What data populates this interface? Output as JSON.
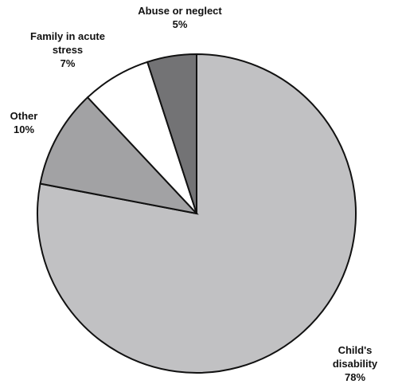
{
  "chart_data": {
    "type": "pie",
    "categories": [
      "Child's disability",
      "Other",
      "Family in acute stress",
      "Abuse or neglect"
    ],
    "values": [
      78,
      10,
      7,
      5
    ],
    "value_labels": [
      "78%",
      "10%",
      "7%",
      "5%"
    ],
    "colors": [
      "#c1c1c3",
      "#a2a2a4",
      "#ffffff",
      "#737375"
    ]
  }
}
